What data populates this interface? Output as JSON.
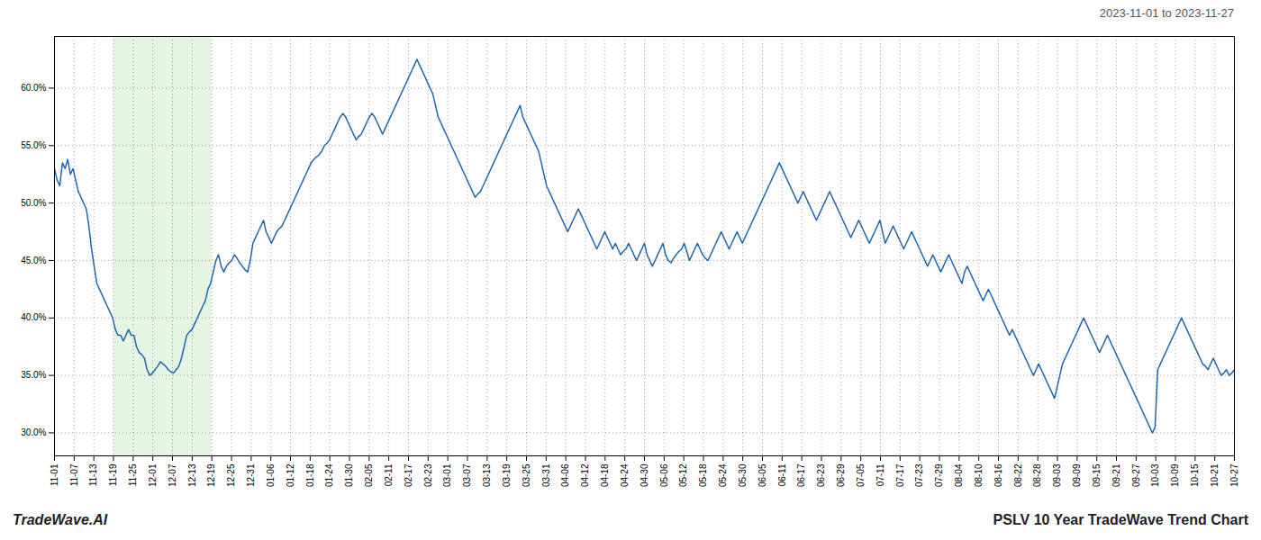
{
  "chart_data": {
    "type": "line",
    "title": "PSLV 10 Year TradeWave Trend Chart",
    "subtitle": "2023-11-01 to 2023-11-27",
    "annotations": [
      "TradeWave.AI"
    ],
    "color": "#2166ac",
    "grid": true,
    "highlight": {
      "from": "11-19",
      "to": "12-19",
      "color": "#d6ecd2"
    },
    "xlim": [
      0,
      446
    ],
    "xticks": [
      {
        "value": 0,
        "label": "11-01"
      },
      {
        "value": 7.4333,
        "label": "11-07"
      },
      {
        "value": 14.8667,
        "label": "11-13"
      },
      {
        "value": 22.3,
        "label": "11-19"
      },
      {
        "value": 29.7333,
        "label": "11-25"
      },
      {
        "value": 37.1667,
        "label": "12-01"
      },
      {
        "value": 44.6,
        "label": "12-07"
      },
      {
        "value": 52.0333,
        "label": "12-13"
      },
      {
        "value": 59.4667,
        "label": "12-19"
      },
      {
        "value": 66.9,
        "label": "12-25"
      },
      {
        "value": 74.3333,
        "label": "12-31"
      },
      {
        "value": 81.7667,
        "label": "01-06"
      },
      {
        "value": 89.2,
        "label": "01-12"
      },
      {
        "value": 96.6333,
        "label": "01-18"
      },
      {
        "value": 104.0667,
        "label": "01-24"
      },
      {
        "value": 111.5,
        "label": "01-30"
      },
      {
        "value": 118.9333,
        "label": "02-05"
      },
      {
        "value": 126.3667,
        "label": "02-11"
      },
      {
        "value": 133.8,
        "label": "02-17"
      },
      {
        "value": 141.2333,
        "label": "02-23"
      },
      {
        "value": 148.6667,
        "label": "03-01"
      },
      {
        "value": 156.1,
        "label": "03-07"
      },
      {
        "value": 163.5333,
        "label": "03-13"
      },
      {
        "value": 170.9667,
        "label": "03-19"
      },
      {
        "value": 178.4,
        "label": "03-25"
      },
      {
        "value": 185.8333,
        "label": "03-31"
      },
      {
        "value": 193.2667,
        "label": "04-06"
      },
      {
        "value": 200.7,
        "label": "04-12"
      },
      {
        "value": 208.1333,
        "label": "04-18"
      },
      {
        "value": 215.5667,
        "label": "04-24"
      },
      {
        "value": 223,
        "label": "04-30"
      },
      {
        "value": 230.4333,
        "label": "05-06"
      },
      {
        "value": 237.8667,
        "label": "05-12"
      },
      {
        "value": 245.3,
        "label": "05-18"
      },
      {
        "value": 252.7333,
        "label": "05-24"
      },
      {
        "value": 260.1667,
        "label": "05-30"
      },
      {
        "value": 267.6,
        "label": "06-05"
      },
      {
        "value": 275.0333,
        "label": "06-11"
      },
      {
        "value": 282.4667,
        "label": "06-17"
      },
      {
        "value": 289.9,
        "label": "06-23"
      },
      {
        "value": 297.3333,
        "label": "06-29"
      },
      {
        "value": 304.7667,
        "label": "07-05"
      },
      {
        "value": 312.2,
        "label": "07-11"
      },
      {
        "value": 319.6333,
        "label": "07-17"
      },
      {
        "value": 327.0667,
        "label": "07-23"
      },
      {
        "value": 334.5,
        "label": "07-29"
      },
      {
        "value": 341.9333,
        "label": "08-04"
      },
      {
        "value": 349.3667,
        "label": "08-10"
      },
      {
        "value": 356.8,
        "label": "08-16"
      },
      {
        "value": 364.2333,
        "label": "08-22"
      },
      {
        "value": 371.6667,
        "label": "08-28"
      },
      {
        "value": 379.1,
        "label": "09-03"
      },
      {
        "value": 386.5333,
        "label": "09-09"
      },
      {
        "value": 393.9667,
        "label": "09-15"
      },
      {
        "value": 401.4,
        "label": "09-21"
      },
      {
        "value": 408.8333,
        "label": "09-27"
      },
      {
        "value": 416.2667,
        "label": "10-03"
      },
      {
        "value": 423.7,
        "label": "10-09"
      },
      {
        "value": 431.1333,
        "label": "10-15"
      },
      {
        "value": 438.5667,
        "label": "10-21"
      },
      {
        "value": 446,
        "label": "10-27"
      }
    ],
    "ylim": [
      28.0,
      64.5
    ],
    "yticks": [
      {
        "value": 30.0,
        "label": "30.0%"
      },
      {
        "value": 35.0,
        "label": "35.0%"
      },
      {
        "value": 40.0,
        "label": "40.0%"
      },
      {
        "value": 45.0,
        "label": "45.0%"
      },
      {
        "value": 50.0,
        "label": "50.0%"
      },
      {
        "value": 55.0,
        "label": "55.0%"
      },
      {
        "value": 60.0,
        "label": "60.0%"
      }
    ],
    "values": [
      53.0,
      52.0,
      51.5,
      53.5,
      53.0,
      53.8,
      52.5,
      53.0,
      52.0,
      51.0,
      50.5,
      50.0,
      49.5,
      48.0,
      46.0,
      44.5,
      43.0,
      42.5,
      42.0,
      41.5,
      41.0,
      40.5,
      40.0,
      39.0,
      38.5,
      38.5,
      38.0,
      38.5,
      39.0,
      38.5,
      38.5,
      37.5,
      37.0,
      36.8,
      36.5,
      35.5,
      35.0,
      35.2,
      35.5,
      35.8,
      36.2,
      36.0,
      35.8,
      35.5,
      35.3,
      35.2,
      35.5,
      35.8,
      36.5,
      37.5,
      38.5,
      38.8,
      39.0,
      39.5,
      40.0,
      40.5,
      41.0,
      41.5,
      42.5,
      43.0,
      44.0,
      45.0,
      45.5,
      44.5,
      44.0,
      44.5,
      44.8,
      45.0,
      45.5,
      45.2,
      44.8,
      44.5,
      44.2,
      44.0,
      45.0,
      46.5,
      47.0,
      47.5,
      48.0,
      48.5,
      47.5,
      47.0,
      46.5,
      47.0,
      47.5,
      47.8,
      48.0,
      48.5,
      49.0,
      49.5,
      50.0,
      50.5,
      51.0,
      51.5,
      52.0,
      52.5,
      53.0,
      53.5,
      53.8,
      54.0,
      54.2,
      54.5,
      55.0,
      55.2,
      55.5,
      56.0,
      56.5,
      57.0,
      57.5,
      57.8,
      57.5,
      57.0,
      56.5,
      56.0,
      55.5,
      55.8,
      56.0,
      56.5,
      57.0,
      57.5,
      57.8,
      57.5,
      57.0,
      56.5,
      56.0,
      56.5,
      57.0,
      57.5,
      58.0,
      58.5,
      59.0,
      59.5,
      60.0,
      60.5,
      61.0,
      61.5,
      62.0,
      62.5,
      62.0,
      61.5,
      61.0,
      60.5,
      60.0,
      59.5,
      58.5,
      57.5,
      57.0,
      56.5,
      56.0,
      55.5,
      55.0,
      54.5,
      54.0,
      53.5,
      53.0,
      52.5,
      52.0,
      51.5,
      51.0,
      50.5,
      50.8,
      51.0,
      51.5,
      52.0,
      52.5,
      53.0,
      53.5,
      54.0,
      54.5,
      55.0,
      55.5,
      56.0,
      56.5,
      57.0,
      57.5,
      58.0,
      58.5,
      57.5,
      57.0,
      56.5,
      56.0,
      55.5,
      55.0,
      54.5,
      53.5,
      52.5,
      51.5,
      51.0,
      50.5,
      50.0,
      49.5,
      49.0,
      48.5,
      48.0,
      47.5,
      48.0,
      48.5,
      49.0,
      49.5,
      49.0,
      48.5,
      48.0,
      47.5,
      47.0,
      46.5,
      46.0,
      46.5,
      47.0,
      47.5,
      47.0,
      46.5,
      46.0,
      46.5,
      46.0,
      45.5,
      45.8,
      46.0,
      46.5,
      46.0,
      45.5,
      45.0,
      45.5,
      46.0,
      46.5,
      45.5,
      45.0,
      44.5,
      45.0,
      45.5,
      46.0,
      46.5,
      45.5,
      45.0,
      44.8,
      45.2,
      45.5,
      45.8,
      46.0,
      46.5,
      45.8,
      45.0,
      45.5,
      46.0,
      46.5,
      46.0,
      45.5,
      45.2,
      45.0,
      45.5,
      46.0,
      46.5,
      47.0,
      47.5,
      47.0,
      46.5,
      46.0,
      46.5,
      47.0,
      47.5,
      47.0,
      46.5,
      47.0,
      47.5,
      48.0,
      48.5,
      49.0,
      49.5,
      50.0,
      50.5,
      51.0,
      51.5,
      52.0,
      52.5,
      53.0,
      53.5,
      53.0,
      52.5,
      52.0,
      51.5,
      51.0,
      50.5,
      50.0,
      50.5,
      51.0,
      50.5,
      50.0,
      49.5,
      49.0,
      48.5,
      49.0,
      49.5,
      50.0,
      50.5,
      51.0,
      50.5,
      50.0,
      49.5,
      49.0,
      48.5,
      48.0,
      47.5,
      47.0,
      47.5,
      48.0,
      48.5,
      48.0,
      47.5,
      47.0,
      46.5,
      47.0,
      47.5,
      48.0,
      48.5,
      47.5,
      46.5,
      47.0,
      47.5,
      48.0,
      47.5,
      47.0,
      46.5,
      46.0,
      46.5,
      47.0,
      47.5,
      47.0,
      46.5,
      46.0,
      45.5,
      45.0,
      44.5,
      45.0,
      45.5,
      45.0,
      44.5,
      44.0,
      44.5,
      45.0,
      45.5,
      45.0,
      44.5,
      44.0,
      43.5,
      43.0,
      44.0,
      44.5,
      44.0,
      43.5,
      43.0,
      42.5,
      42.0,
      41.5,
      42.0,
      42.5,
      42.0,
      41.5,
      41.0,
      40.5,
      40.0,
      39.5,
      39.0,
      38.5,
      39.0,
      38.5,
      38.0,
      37.5,
      37.0,
      36.5,
      36.0,
      35.5,
      35.0,
      35.5,
      36.0,
      35.5,
      35.0,
      34.5,
      34.0,
      33.5,
      33.0,
      34.0,
      35.0,
      36.0,
      36.5,
      37.0,
      37.5,
      38.0,
      38.5,
      39.0,
      39.5,
      40.0,
      39.5,
      39.0,
      38.5,
      38.0,
      37.5,
      37.0,
      37.5,
      38.0,
      38.5,
      38.0,
      37.5,
      37.0,
      36.5,
      36.0,
      35.5,
      35.0,
      34.5,
      34.0,
      33.5,
      33.0,
      32.5,
      32.0,
      31.5,
      31.0,
      30.5,
      30.0,
      30.5,
      35.5,
      36.0,
      36.5,
      37.0,
      37.5,
      38.0,
      38.5,
      39.0,
      39.5,
      40.0,
      39.5,
      39.0,
      38.5,
      38.0,
      37.5,
      37.0,
      36.5,
      36.0,
      35.8,
      35.5,
      36.0,
      36.5,
      36.0,
      35.5,
      35.0,
      35.2,
      35.5,
      35.0,
      35.2,
      35.5
    ]
  }
}
